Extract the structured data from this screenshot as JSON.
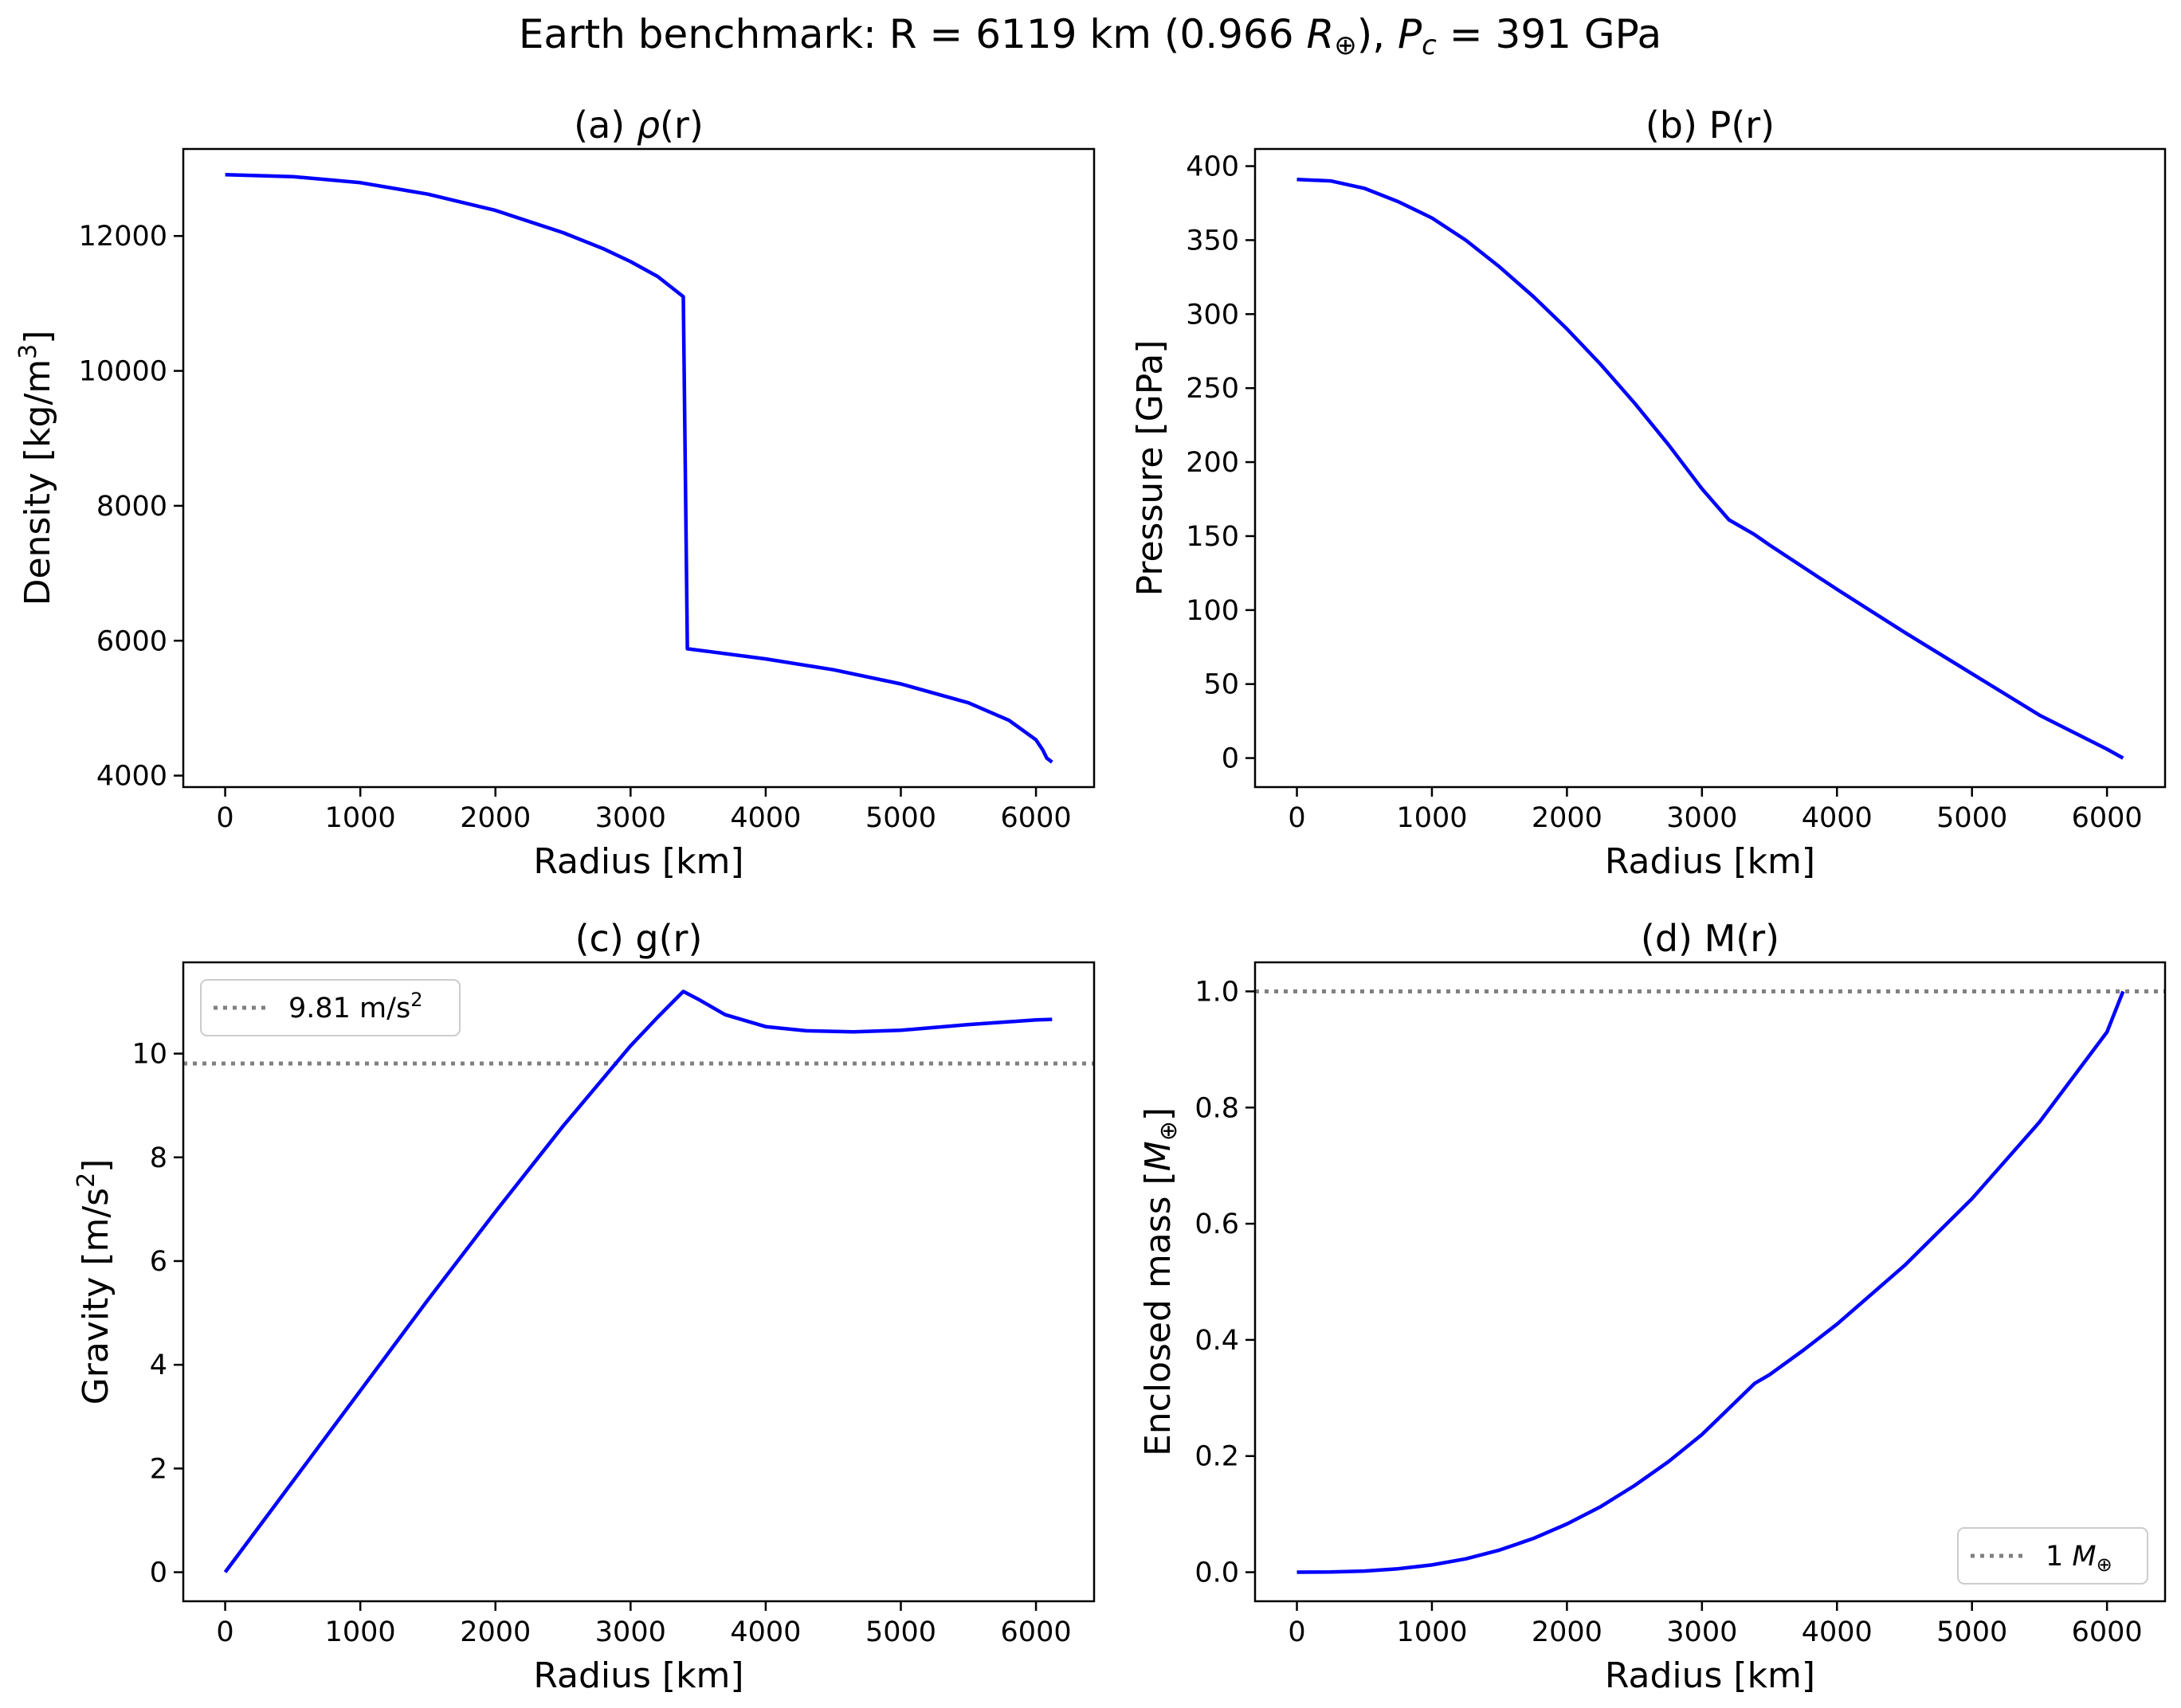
{
  "figure": {
    "title": "Earth benchmark: R = 6119 km (0.966 R⊕), Pc = 391 GPa",
    "title_parts": [
      "Earth benchmark: R = 6119 km (0.966 ",
      "R",
      "⊕",
      "), ",
      "P",
      "c",
      " = 391 GPa"
    ]
  },
  "chart_data": [
    {
      "id": "a",
      "type": "line",
      "title": "(a) ρ(r)",
      "title_parts": [
        "(a) ",
        "ρ",
        "(r)"
      ],
      "xlabel": "Radius [km]",
      "ylabel": "Density [kg/m3]",
      "ylabel_parts": [
        "Density [kg/m",
        "3",
        "]"
      ],
      "xlim": [
        -310,
        6430
      ],
      "ylim": [
        3830,
        13290
      ],
      "xticks": [
        0,
        1000,
        2000,
        3000,
        4000,
        5000,
        6000
      ],
      "yticks": [
        4000,
        6000,
        8000,
        10000,
        12000
      ],
      "grid": false,
      "legend": null,
      "series": [
        {
          "color": "#0000ff",
          "x": [
            0,
            500,
            1000,
            1500,
            2000,
            2500,
            2800,
            3000,
            3200,
            3390,
            3420,
            3500,
            4000,
            4500,
            5000,
            5500,
            5800,
            6000,
            6050,
            6080,
            6119
          ],
          "y": [
            12910,
            12880,
            12790,
            12620,
            12380,
            12050,
            11810,
            11620,
            11400,
            11100,
            5880,
            5860,
            5730,
            5570,
            5360,
            5080,
            4820,
            4530,
            4380,
            4260,
            4200
          ]
        }
      ]
    },
    {
      "id": "b",
      "type": "line",
      "title": "(b) P(r)",
      "xlabel": "Radius [km]",
      "ylabel": "Pressure [GPa]",
      "xlim": [
        -310,
        6430
      ],
      "ylim": [
        -19.6,
        411.6
      ],
      "xticks": [
        0,
        1000,
        2000,
        3000,
        4000,
        5000,
        6000
      ],
      "yticks": [
        0,
        50,
        100,
        150,
        200,
        250,
        300,
        350,
        400
      ],
      "grid": false,
      "legend": null,
      "series": [
        {
          "color": "#0000ff",
          "x": [
            0,
            250,
            500,
            750,
            1000,
            1250,
            1500,
            1750,
            2000,
            2250,
            2500,
            2750,
            3000,
            3200,
            3390,
            3500,
            4000,
            4500,
            5000,
            5500,
            6000,
            6119
          ],
          "y": [
            391,
            390,
            385,
            376,
            365,
            350,
            332,
            312,
            290,
            266,
            240,
            212,
            182,
            161,
            151,
            144,
            114,
            85,
            57,
            29,
            6,
            0
          ]
        }
      ]
    },
    {
      "id": "c",
      "type": "line",
      "title": "(c) g(r)",
      "xlabel": "Radius [km]",
      "ylabel": "Gravity [m/s2]",
      "ylabel_parts": [
        "Gravity [m/s",
        "2",
        "]"
      ],
      "xlim": [
        -310,
        6430
      ],
      "ylim": [
        -0.56,
        11.76
      ],
      "xticks": [
        0,
        1000,
        2000,
        3000,
        4000,
        5000,
        6000
      ],
      "yticks": [
        0,
        2,
        4,
        6,
        8,
        10
      ],
      "grid": false,
      "legend": "upper left",
      "reference_lines": [
        {
          "y": 9.81,
          "label": "9.81 m/s2",
          "label_parts": [
            "9.81 m/s",
            "2"
          ],
          "color": "#808080",
          "style": "dotted"
        }
      ],
      "series": [
        {
          "color": "#0000ff",
          "x": [
            0,
            500,
            1000,
            1500,
            2000,
            2500,
            3000,
            3200,
            3390,
            3500,
            3700,
            4000,
            4300,
            4650,
            5000,
            5500,
            6000,
            6119
          ],
          "y": [
            0,
            1.75,
            3.5,
            5.25,
            6.95,
            8.6,
            10.15,
            10.7,
            11.2,
            11.05,
            10.75,
            10.52,
            10.44,
            10.42,
            10.45,
            10.56,
            10.65,
            10.66
          ]
        }
      ]
    },
    {
      "id": "d",
      "type": "line",
      "title": "(d) M(r)",
      "xlabel": "Radius [km]",
      "ylabel": "Enclosed mass [M⊕]",
      "ylabel_parts": [
        "Enclosed mass [",
        "M",
        "⊕",
        "]"
      ],
      "xlim": [
        -310,
        6430
      ],
      "ylim": [
        -0.05,
        1.05
      ],
      "xticks": [
        0,
        1000,
        2000,
        3000,
        4000,
        5000,
        6000
      ],
      "yticks": [
        0.0,
        0.2,
        0.4,
        0.6,
        0.8,
        1.0
      ],
      "ytick_labels": [
        "0.0",
        "0.2",
        "0.4",
        "0.6",
        "0.8",
        "1.0"
      ],
      "grid": false,
      "legend": "lower right",
      "reference_lines": [
        {
          "y": 1.0,
          "label": "1 M⊕",
          "label_parts": [
            "1 ",
            "M",
            "⊕"
          ],
          "color": "#808080",
          "style": "dotted"
        }
      ],
      "series": [
        {
          "color": "#0000ff",
          "x": [
            0,
            250,
            500,
            750,
            1000,
            1250,
            1500,
            1750,
            2000,
            2250,
            2500,
            2750,
            3000,
            3200,
            3390,
            3500,
            3750,
            4000,
            4500,
            5000,
            5500,
            6000,
            6119
          ],
          "y": [
            0,
            0.0003,
            0.002,
            0.006,
            0.0125,
            0.023,
            0.038,
            0.058,
            0.083,
            0.113,
            0.149,
            0.19,
            0.237,
            0.282,
            0.325,
            0.34,
            0.382,
            0.427,
            0.528,
            0.643,
            0.775,
            0.93,
            1.0
          ]
        }
      ]
    }
  ]
}
